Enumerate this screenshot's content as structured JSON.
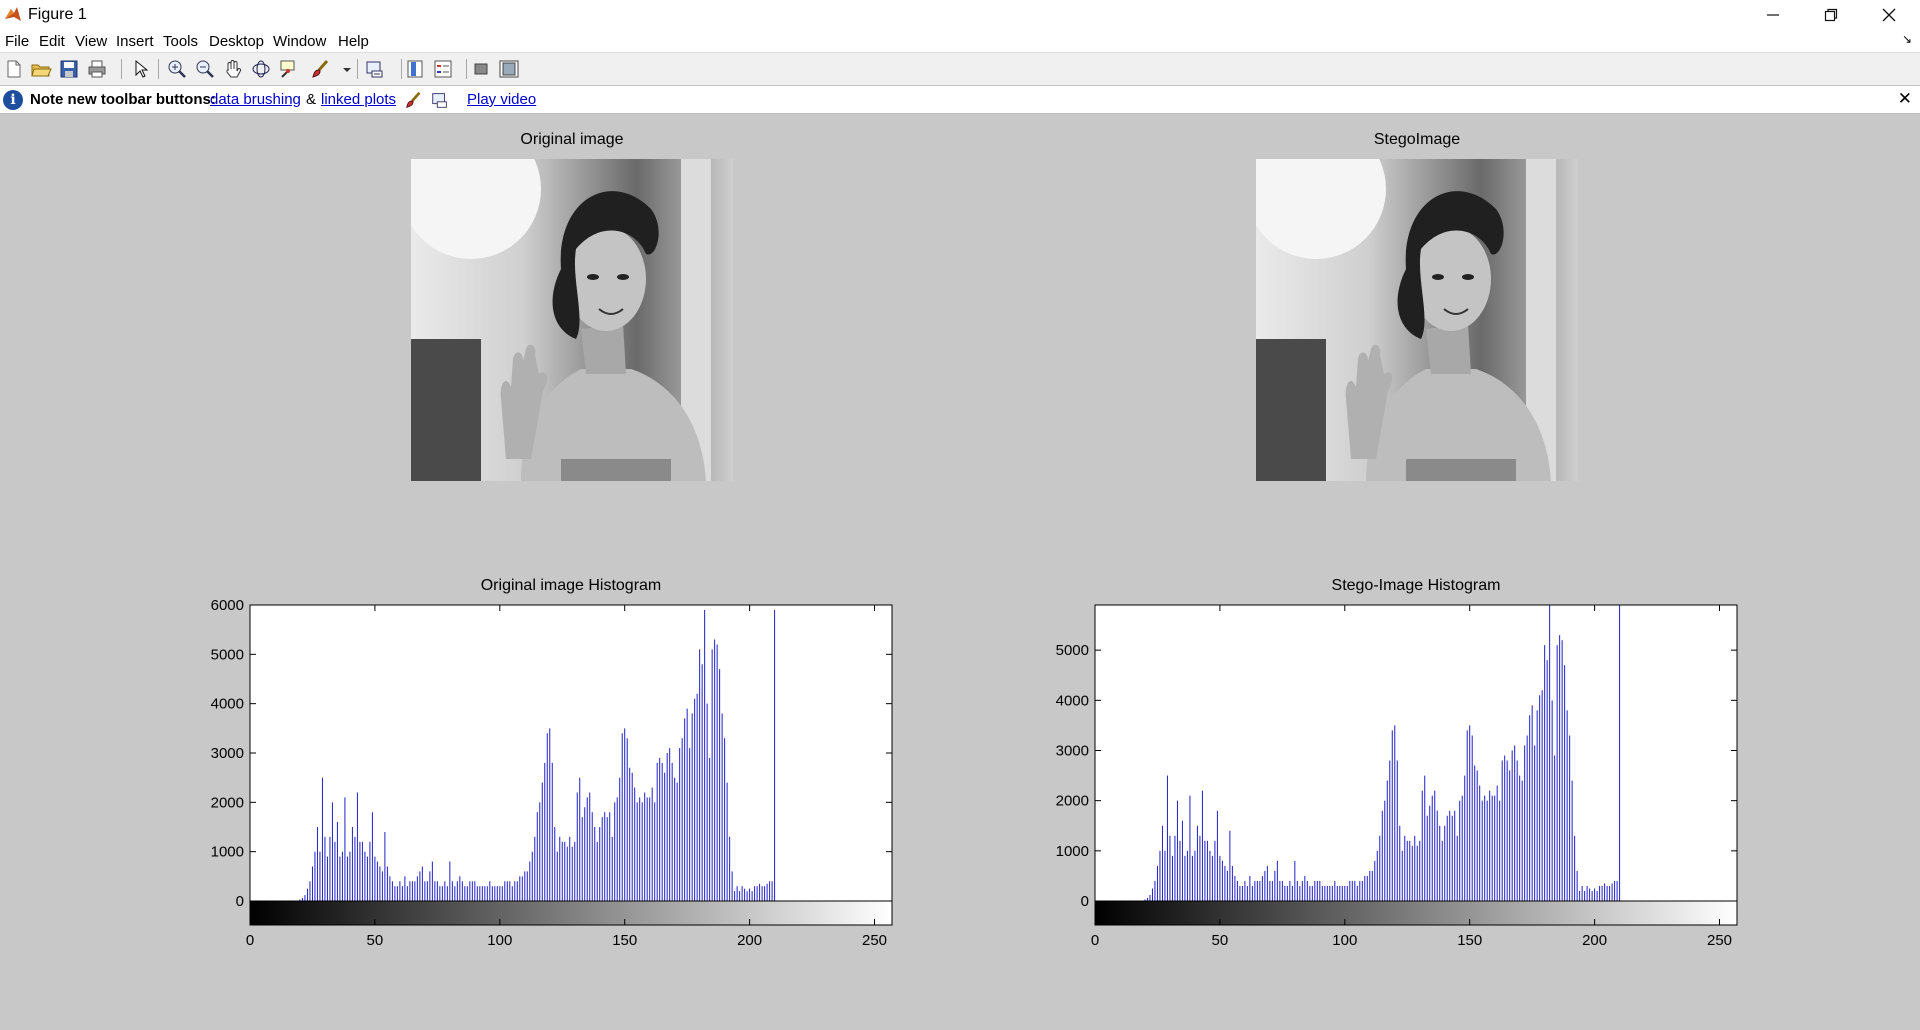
{
  "window": {
    "title": "Figure 1",
    "controls": [
      "minimize",
      "restore",
      "close"
    ]
  },
  "menubar": {
    "items": [
      "File",
      "Edit",
      "View",
      "Insert",
      "Tools",
      "Desktop",
      "Window",
      "Help"
    ]
  },
  "toolbar": {
    "buttons": [
      "new-figure-icon",
      "open-file-icon",
      "save-icon",
      "print-icon",
      "edit-plot-arrow-icon",
      "zoom-in-icon",
      "zoom-out-icon",
      "pan-hand-icon",
      "rotate-3d-icon",
      "data-cursor-icon",
      "brush-icon",
      "link-plot-icon",
      "colorbar-icon",
      "legend-icon",
      "hide-plot-tools-icon",
      "show-plot-tools-icon"
    ]
  },
  "infobar": {
    "note": "Note new toolbar buttons:",
    "link1": "data brushing",
    "amp": "&",
    "link2": "linked plots",
    "link3": "Play video"
  },
  "figures": {
    "original_title": "Original image",
    "stego_title": "StegoImage"
  },
  "colors": {
    "figure_bg": "#c8c8c8",
    "bar_color": "#2020c8",
    "link_color": "#0000cc"
  },
  "chart_data": [
    {
      "type": "bar",
      "title": "Original image Histogram",
      "xlabel": "",
      "ylabel": "",
      "xlim": [
        0,
        255
      ],
      "ylim": [
        0,
        6000
      ],
      "xticks": [
        0,
        50,
        100,
        150,
        200,
        250
      ],
      "yticks": [
        0,
        1000,
        2000,
        3000,
        4000,
        5000,
        6000
      ],
      "colorbar": "grayscale 0-255 below x-axis",
      "series": [
        {
          "x_start": 0,
          "x_step": 1,
          "values": [
            0,
            0,
            0,
            0,
            0,
            0,
            0,
            0,
            0,
            0,
            0,
            0,
            0,
            0,
            0,
            0,
            0,
            0,
            0,
            0,
            30,
            60,
            120,
            250,
            400,
            700,
            1000,
            1500,
            1000,
            2500,
            1300,
            900,
            1300,
            2000,
            1200,
            1600,
            900,
            1000,
            2100,
            900,
            1000,
            1500,
            1300,
            2200,
            1200,
            1200,
            1000,
            900,
            1200,
            1800,
            900,
            800,
            700,
            600,
            1400,
            700,
            500,
            400,
            300,
            300,
            400,
            300,
            500,
            300,
            400,
            400,
            400,
            500,
            600,
            700,
            400,
            400,
            600,
            800,
            400,
            400,
            300,
            300,
            400,
            300,
            800,
            400,
            300,
            400,
            500,
            400,
            300,
            300,
            400,
            400,
            400,
            300,
            300,
            300,
            300,
            300,
            400,
            300,
            300,
            300,
            300,
            300,
            400,
            400,
            400,
            300,
            400,
            400,
            500,
            500,
            600,
            600,
            800,
            1000,
            1300,
            1800,
            2000,
            2400,
            2800,
            3400,
            3500,
            2800,
            1500,
            1000,
            1300,
            1200,
            1200,
            1100,
            1300,
            1100,
            1200,
            2200,
            2500,
            1700,
            1900,
            2100,
            2200,
            1800,
            1500,
            1200,
            1500,
            1700,
            1800,
            1700,
            1800,
            1300,
            2000,
            2100,
            2500,
            3400,
            3500,
            3300,
            2700,
            2600,
            2300,
            2000,
            2100,
            2000,
            2200,
            2100,
            2100,
            2300,
            2000,
            2800,
            2900,
            2800,
            2600,
            3000,
            3100,
            2800,
            2500,
            2400,
            3100,
            3300,
            3700,
            3900,
            3100,
            3800,
            4100,
            4200,
            5100,
            4800,
            5900,
            4000,
            2900,
            5100,
            5300,
            5200,
            4700,
            3800,
            3300,
            2400,
            1300,
            600,
            200,
            300,
            200,
            300,
            250,
            200,
            250,
            200,
            300,
            300,
            350,
            300,
            300,
            350,
            400,
            400,
            5900
          ]
        }
      ]
    },
    {
      "type": "bar",
      "title": "Stego-Image Histogram",
      "xlabel": "",
      "ylabel": "",
      "xlim": [
        0,
        255
      ],
      "ylim": [
        0,
        5900
      ],
      "xticks": [
        0,
        50,
        100,
        150,
        200,
        250
      ],
      "yticks": [
        0,
        1000,
        2000,
        3000,
        4000,
        5000
      ],
      "colorbar": "grayscale 0-255 below x-axis",
      "series": [
        {
          "x_start": 0,
          "x_step": 1,
          "values": [
            0,
            0,
            0,
            0,
            0,
            0,
            0,
            0,
            0,
            0,
            0,
            0,
            0,
            0,
            0,
            0,
            0,
            0,
            0,
            0,
            30,
            60,
            120,
            250,
            400,
            700,
            1000,
            1500,
            1000,
            2500,
            1300,
            900,
            1300,
            2000,
            1200,
            1600,
            900,
            1000,
            2100,
            900,
            1000,
            1500,
            1300,
            2200,
            1200,
            1200,
            1000,
            900,
            1200,
            1800,
            900,
            800,
            700,
            600,
            1400,
            700,
            500,
            400,
            300,
            300,
            400,
            300,
            500,
            300,
            400,
            400,
            400,
            500,
            600,
            700,
            400,
            400,
            600,
            800,
            400,
            400,
            300,
            300,
            400,
            300,
            800,
            400,
            300,
            400,
            500,
            400,
            300,
            300,
            400,
            400,
            400,
            300,
            300,
            300,
            300,
            300,
            400,
            300,
            300,
            300,
            300,
            300,
            400,
            400,
            400,
            300,
            400,
            400,
            500,
            500,
            600,
            600,
            800,
            1000,
            1300,
            1800,
            2000,
            2400,
            2800,
            3400,
            3500,
            2800,
            1500,
            1000,
            1300,
            1200,
            1200,
            1100,
            1300,
            1100,
            1200,
            2200,
            2500,
            1700,
            1900,
            2100,
            2200,
            1800,
            1500,
            1200,
            1500,
            1700,
            1800,
            1700,
            1800,
            1300,
            2000,
            2100,
            2500,
            3400,
            3500,
            3300,
            2700,
            2600,
            2300,
            2000,
            2100,
            2000,
            2200,
            2100,
            2100,
            2300,
            2000,
            2800,
            2900,
            2800,
            2600,
            3000,
            3100,
            2800,
            2500,
            2400,
            3100,
            3300,
            3700,
            3900,
            3100,
            3800,
            4100,
            4200,
            5100,
            4800,
            5900,
            4000,
            2900,
            5100,
            5300,
            5200,
            4700,
            3800,
            3300,
            2400,
            1300,
            600,
            200,
            300,
            200,
            300,
            250,
            200,
            250,
            200,
            300,
            300,
            350,
            300,
            300,
            350,
            400,
            400,
            5900
          ]
        }
      ]
    }
  ]
}
